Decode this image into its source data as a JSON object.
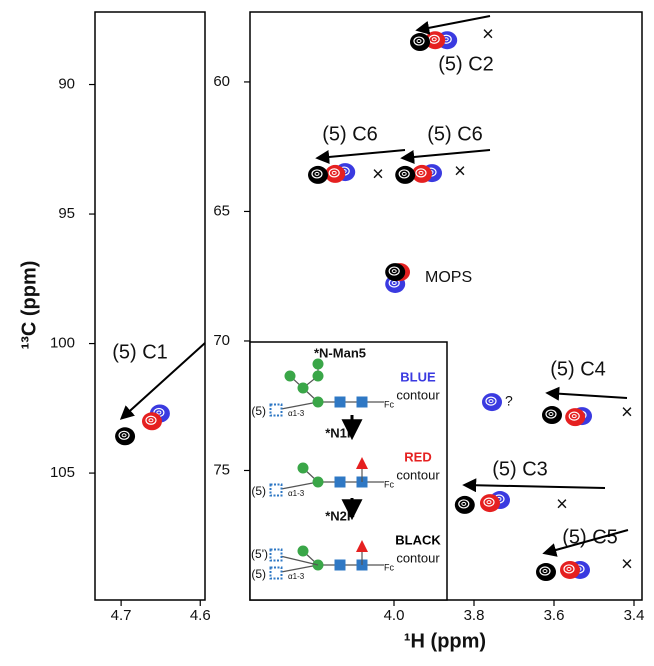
{
  "chart_data": [
    {
      "type": "scatter",
      "ylabel": "¹³C (ppm)",
      "xlim": [
        4.733,
        4.594
      ],
      "ylim": [
        87.2,
        109.9
      ],
      "xticks": [
        4.7,
        4.6
      ],
      "yticks": [
        90,
        95,
        100,
        105
      ],
      "series": [
        {
          "color": "#3a3ae0",
          "x": [
            4.651
          ],
          "values": [
            102.7
          ]
        },
        {
          "color": "#e52020",
          "x": [
            4.661
          ],
          "values": [
            103.0
          ]
        },
        {
          "color": "#000000",
          "x": [
            4.695
          ],
          "values": [
            103.58
          ]
        }
      ],
      "annotations": [
        "(5) C1"
      ]
    },
    {
      "type": "scatter",
      "xlabel": "¹H (ppm)",
      "xlim": [
        4.36,
        3.38
      ],
      "ylim": [
        57.3,
        80
      ],
      "xticks": [
        {
          "value": 4.0,
          "label": "4.0"
        },
        3.8,
        3.6,
        3.4
      ],
      "yticks": [
        60,
        65,
        70,
        75
      ],
      "series": [
        {
          "color": "#3a3ae0",
          "x": [
            3.867,
            4.122,
            3.905,
            3.997,
            3.53,
            3.735,
            3.535,
            3.755
          ],
          "values": [
            58.39,
            63.48,
            63.52,
            67.8,
            72.9,
            76.14,
            78.84,
            72.36
          ]
        },
        {
          "color": "#e52020",
          "x": [
            3.897,
            4.147,
            3.93,
            3.985,
            3.547,
            3.76,
            3.56
          ],
          "values": [
            58.39,
            63.55,
            63.55,
            67.34,
            72.94,
            76.26,
            78.84
          ]
        },
        {
          "color": "#000000",
          "x": [
            3.935,
            4.19,
            3.972,
            3.997,
            3.605,
            3.823,
            3.62
          ],
          "values": [
            58.46,
            63.59,
            63.59,
            67.34,
            72.86,
            76.33,
            78.92
          ]
        }
      ],
      "annotations": [
        "(5) C2",
        "(5) C6",
        "(5) C6",
        "MOPS",
        "?",
        "(5) C4",
        "(5) C3",
        "(5) C5",
        "×",
        "×",
        "×",
        "×",
        "×",
        "×"
      ]
    }
  ],
  "inset": {
    "items": [
      {
        "name": "*N-Man5",
        "color_word": "BLUE",
        "color": "#3a3ae0",
        "contour": "contour",
        "branch": "(5)",
        "linkage": "α1-3",
        "fc": "Fc"
      },
      {
        "name": "*N1F",
        "color_word": "RED",
        "color": "#e52020",
        "contour": "contour",
        "branch": "(5)",
        "linkage": "α1-3",
        "fc": "Fc"
      },
      {
        "name": "*N2F",
        "color_word": "BLACK",
        "color": "#000000",
        "contour": "contour",
        "branch": "(5)",
        "branch2": "(5')",
        "linkage": "α1-3",
        "fc": "Fc"
      }
    ]
  }
}
